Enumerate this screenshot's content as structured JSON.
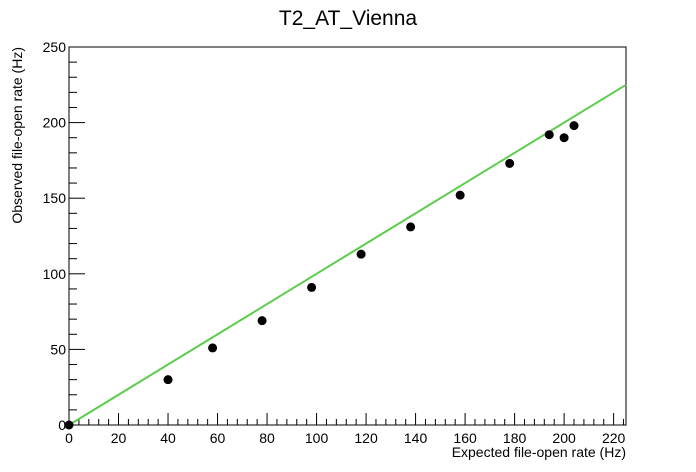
{
  "chart_data": {
    "type": "scatter",
    "title": "T2_AT_Vienna",
    "xlabel": "Expected file-open rate (Hz)",
    "ylabel": "Observed file-open rate (Hz)",
    "xlim": [
      0,
      225
    ],
    "ylim": [
      0,
      250
    ],
    "x_ticks": [
      0,
      20,
      40,
      60,
      80,
      100,
      120,
      140,
      160,
      180,
      200,
      220
    ],
    "y_ticks": [
      0,
      50,
      100,
      150,
      200,
      250
    ],
    "grid": false,
    "series": [
      {
        "type": "scatter",
        "color": "#000000",
        "points": [
          {
            "x": 0,
            "y": 0
          },
          {
            "x": 40,
            "y": 30
          },
          {
            "x": 58,
            "y": 51
          },
          {
            "x": 78,
            "y": 69
          },
          {
            "x": 98,
            "y": 91
          },
          {
            "x": 118,
            "y": 113
          },
          {
            "x": 138,
            "y": 131
          },
          {
            "x": 158,
            "y": 152
          },
          {
            "x": 178,
            "y": 173
          },
          {
            "x": 194,
            "y": 192
          },
          {
            "x": 200,
            "y": 190
          },
          {
            "x": 204,
            "y": 198
          }
        ]
      },
      {
        "type": "line",
        "color": "#5ccc4c",
        "points": [
          {
            "x": 0,
            "y": 0
          },
          {
            "x": 225,
            "y": 225
          }
        ]
      }
    ]
  }
}
